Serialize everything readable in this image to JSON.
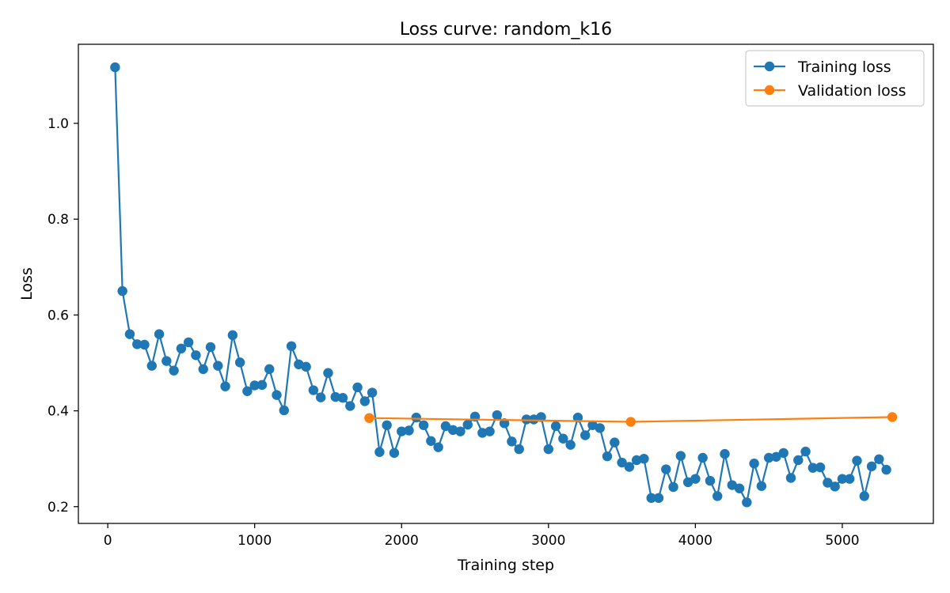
{
  "chart_data": {
    "type": "line",
    "title": "Loss curve: random_k16",
    "xlabel": "Training step",
    "ylabel": "Loss",
    "xlim": [
      -200,
      5620
    ],
    "ylim": [
      0.165,
      1.165
    ],
    "xticks": [
      0,
      1000,
      2000,
      3000,
      4000,
      5000
    ],
    "yticks": [
      0.2,
      0.4,
      0.6,
      0.8,
      1.0
    ],
    "xtick_labels": [
      "0",
      "1000",
      "2000",
      "3000",
      "4000",
      "5000"
    ],
    "ytick_labels": [
      "0.2",
      "0.4",
      "0.6",
      "0.8",
      "1.0"
    ],
    "grid": false,
    "legend_position": "top-right",
    "series": [
      {
        "name": "Training loss",
        "color": "#1f77b4",
        "x": [
          50,
          100,
          150,
          200,
          250,
          300,
          350,
          400,
          450,
          500,
          550,
          600,
          650,
          700,
          750,
          800,
          850,
          900,
          950,
          1000,
          1050,
          1100,
          1150,
          1200,
          1250,
          1300,
          1350,
          1400,
          1450,
          1500,
          1550,
          1600,
          1650,
          1700,
          1750,
          1800,
          1850,
          1900,
          1950,
          2000,
          2050,
          2100,
          2150,
          2200,
          2250,
          2300,
          2350,
          2400,
          2450,
          2500,
          2550,
          2600,
          2650,
          2700,
          2750,
          2800,
          2850,
          2900,
          2950,
          3000,
          3050,
          3100,
          3150,
          3200,
          3250,
          3300,
          3350,
          3400,
          3450,
          3500,
          3550,
          3600,
          3650,
          3700,
          3750,
          3800,
          3850,
          3900,
          3950,
          4000,
          4050,
          4100,
          4150,
          4200,
          4250,
          4300,
          4350,
          4400,
          4450,
          4500,
          4550,
          4600,
          4650,
          4700,
          4750,
          4800,
          4850,
          4900,
          4950,
          5000,
          5050,
          5100,
          5150,
          5200,
          5250,
          5300
        ],
        "y": [
          1.117,
          0.65,
          0.56,
          0.539,
          0.538,
          0.494,
          0.56,
          0.504,
          0.484,
          0.53,
          0.543,
          0.516,
          0.487,
          0.533,
          0.494,
          0.451,
          0.558,
          0.501,
          0.441,
          0.453,
          0.454,
          0.487,
          0.433,
          0.401,
          0.535,
          0.497,
          0.492,
          0.443,
          0.428,
          0.479,
          0.429,
          0.427,
          0.41,
          0.449,
          0.42,
          0.438,
          0.314,
          0.37,
          0.312,
          0.357,
          0.359,
          0.386,
          0.37,
          0.337,
          0.324,
          0.368,
          0.36,
          0.357,
          0.371,
          0.388,
          0.354,
          0.357,
          0.391,
          0.374,
          0.336,
          0.32,
          0.382,
          0.382,
          0.387,
          0.32,
          0.368,
          0.342,
          0.329,
          0.386,
          0.349,
          0.37,
          0.364,
          0.305,
          0.334,
          0.292,
          0.283,
          0.297,
          0.3,
          0.218,
          0.218,
          0.278,
          0.241,
          0.306,
          0.251,
          0.258,
          0.302,
          0.254,
          0.222,
          0.31,
          0.245,
          0.238,
          0.209,
          0.29,
          0.243,
          0.302,
          0.304,
          0.312,
          0.26,
          0.297,
          0.315,
          0.281,
          0.282,
          0.25,
          0.242,
          0.258,
          0.258,
          0.296,
          0.222,
          0.284,
          0.299,
          0.277
        ]
      },
      {
        "name": "Validation loss",
        "color": "#ff7f0e",
        "x": [
          1780,
          3560,
          5340
        ],
        "y": [
          0.385,
          0.377,
          0.387
        ]
      }
    ]
  }
}
